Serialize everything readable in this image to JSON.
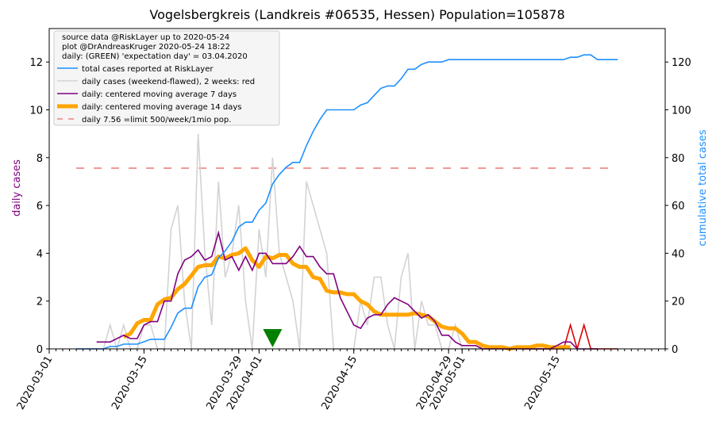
{
  "chart_data": {
    "type": "line",
    "title": "Vogelsbergkreis (Landkreis #06535, Hessen) Population=105878",
    "ylabel_left": "daily cases",
    "ylabel_right": "cumulative total cases",
    "x_axis": {
      "type": "date",
      "start": "2020-03-01",
      "end": "2020-05-31",
      "tick_labels": [
        "2020-03-01",
        "2020-03-15",
        "2020-03-29",
        "2020-04-01",
        "2020-04-15",
        "2020-04-29",
        "2020-05-01",
        "2020-05-15"
      ]
    },
    "y_left": {
      "ylim": [
        0,
        13.4
      ],
      "ticks": [
        0,
        2,
        4,
        6,
        8,
        10,
        12
      ]
    },
    "y_right": {
      "ylim": [
        0,
        134
      ],
      "ticks": [
        0,
        20,
        40,
        60,
        80,
        100,
        120
      ]
    },
    "legend": {
      "placement": "top-left",
      "header": [
        "source data @RiskLayer up to 2020-05-24",
        "plot @DrAndreasKruger 2020-05-24 18:22",
        "daily: (GREEN) 'expectation day' = 03.04.2020"
      ],
      "entries": [
        {
          "label": "total cases reported at RiskLayer",
          "color": "#1E90FF",
          "style": "line"
        },
        {
          "label": "daily cases (weekend-flawed), 2 weeks: red",
          "color": "#D3D3D3",
          "style": "line"
        },
        {
          "label": "daily: centered moving average 7 days",
          "color": "#800080",
          "style": "line"
        },
        {
          "label": "daily: centered moving average 14 days",
          "color": "#FFA500",
          "style": "thick"
        },
        {
          "label": "daily 7.56 =limit 500/week/1mio pop.",
          "color": "#F08080",
          "style": "dashed"
        }
      ]
    },
    "expectation_day": {
      "date": "2020-04-03",
      "color": "#008000"
    },
    "limit_line": {
      "value": 7.56,
      "color": "#F08080",
      "start": "2020-03-05",
      "end": "2020-05-24"
    },
    "series": [
      {
        "name": "total cases reported at RiskLayer",
        "axis": "right",
        "color": "#1E90FF",
        "x": [
          "2020-03-05",
          "2020-03-06",
          "2020-03-07",
          "2020-03-08",
          "2020-03-09",
          "2020-03-10",
          "2020-03-11",
          "2020-03-12",
          "2020-03-13",
          "2020-03-14",
          "2020-03-15",
          "2020-03-16",
          "2020-03-17",
          "2020-03-18",
          "2020-03-19",
          "2020-03-20",
          "2020-03-21",
          "2020-03-22",
          "2020-03-23",
          "2020-03-24",
          "2020-03-25",
          "2020-03-26",
          "2020-03-27",
          "2020-03-28",
          "2020-03-29",
          "2020-03-30",
          "2020-03-31",
          "2020-04-01",
          "2020-04-02",
          "2020-04-03",
          "2020-04-04",
          "2020-04-05",
          "2020-04-06",
          "2020-04-07",
          "2020-04-08",
          "2020-04-09",
          "2020-04-10",
          "2020-04-11",
          "2020-04-12",
          "2020-04-13",
          "2020-04-14",
          "2020-04-15",
          "2020-04-16",
          "2020-04-17",
          "2020-04-18",
          "2020-04-19",
          "2020-04-20",
          "2020-04-21",
          "2020-04-22",
          "2020-04-23",
          "2020-04-24",
          "2020-04-25",
          "2020-04-26",
          "2020-04-27",
          "2020-04-28",
          "2020-04-29",
          "2020-04-30",
          "2020-05-01",
          "2020-05-02",
          "2020-05-03",
          "2020-05-04",
          "2020-05-05",
          "2020-05-06",
          "2020-05-07",
          "2020-05-08",
          "2020-05-09",
          "2020-05-10",
          "2020-05-11",
          "2020-05-12",
          "2020-05-13",
          "2020-05-14",
          "2020-05-15",
          "2020-05-16",
          "2020-05-17",
          "2020-05-18",
          "2020-05-19",
          "2020-05-20",
          "2020-05-21",
          "2020-05-22",
          "2020-05-23",
          "2020-05-24"
        ],
        "values": [
          0,
          0,
          0,
          0,
          0,
          1,
          1,
          2,
          2,
          2,
          3,
          4,
          4,
          4,
          9,
          15,
          17,
          17,
          26,
          30,
          31,
          38,
          41,
          45,
          51,
          53,
          53,
          58,
          61,
          69,
          73,
          76,
          78,
          78,
          85,
          91,
          96,
          100,
          100,
          100,
          100,
          100,
          102,
          103,
          106,
          109,
          110,
          110,
          113,
          117,
          117,
          119,
          120,
          120,
          120,
          121,
          121,
          121,
          121,
          121,
          121,
          121,
          121,
          121,
          121,
          121,
          121,
          121,
          121,
          121,
          121,
          121,
          121,
          122,
          122,
          123,
          123,
          121,
          121,
          121,
          121
        ]
      },
      {
        "name": "daily cases (weekend-flawed), 2 weeks: red",
        "axis": "left",
        "color": "#D3D3D3",
        "recent_color": "#DD0000",
        "recent_from": "2020-05-10",
        "x": [
          "2020-03-05",
          "2020-03-06",
          "2020-03-07",
          "2020-03-08",
          "2020-03-09",
          "2020-03-10",
          "2020-03-11",
          "2020-03-12",
          "2020-03-13",
          "2020-03-14",
          "2020-03-15",
          "2020-03-16",
          "2020-03-17",
          "2020-03-18",
          "2020-03-19",
          "2020-03-20",
          "2020-03-21",
          "2020-03-22",
          "2020-03-23",
          "2020-03-24",
          "2020-03-25",
          "2020-03-26",
          "2020-03-27",
          "2020-03-28",
          "2020-03-29",
          "2020-03-30",
          "2020-03-31",
          "2020-04-01",
          "2020-04-02",
          "2020-04-03",
          "2020-04-04",
          "2020-04-05",
          "2020-04-06",
          "2020-04-07",
          "2020-04-08",
          "2020-04-09",
          "2020-04-10",
          "2020-04-11",
          "2020-04-12",
          "2020-04-13",
          "2020-04-14",
          "2020-04-15",
          "2020-04-16",
          "2020-04-17",
          "2020-04-18",
          "2020-04-19",
          "2020-04-20",
          "2020-04-21",
          "2020-04-22",
          "2020-04-23",
          "2020-04-24",
          "2020-04-25",
          "2020-04-26",
          "2020-04-27",
          "2020-04-28",
          "2020-04-29",
          "2020-04-30",
          "2020-05-01",
          "2020-05-02",
          "2020-05-03",
          "2020-05-04",
          "2020-05-05",
          "2020-05-06",
          "2020-05-07",
          "2020-05-08",
          "2020-05-09",
          "2020-05-10",
          "2020-05-11",
          "2020-05-12",
          "2020-05-13",
          "2020-05-14",
          "2020-05-15",
          "2020-05-16",
          "2020-05-17",
          "2020-05-18",
          "2020-05-19",
          "2020-05-20",
          "2020-05-21",
          "2020-05-22",
          "2020-05-23",
          "2020-05-24"
        ],
        "values": [
          0,
          0,
          0,
          0,
          0,
          1,
          0,
          1,
          0,
          0,
          1,
          1,
          0,
          0,
          5,
          6,
          2,
          0,
          9,
          4,
          1,
          7,
          3,
          4,
          6,
          2,
          0,
          5,
          3,
          8,
          4,
          3,
          2,
          0,
          7,
          6,
          5,
          4,
          0,
          0,
          0,
          0,
          2,
          1,
          3,
          3,
          1,
          0,
          3,
          4,
          0,
          2,
          1,
          1,
          0,
          0,
          1,
          0,
          0,
          0,
          0,
          0,
          0,
          0,
          0,
          0,
          0,
          0,
          0,
          0,
          0,
          0,
          0,
          1,
          0,
          1,
          0,
          0,
          0,
          0,
          0
        ]
      },
      {
        "name": "daily: centered moving average 7 days",
        "axis": "left",
        "color": "#800080",
        "x": [
          "2020-03-08",
          "2020-03-09",
          "2020-03-10",
          "2020-03-11",
          "2020-03-12",
          "2020-03-13",
          "2020-03-14",
          "2020-03-15",
          "2020-03-16",
          "2020-03-17",
          "2020-03-18",
          "2020-03-19",
          "2020-03-20",
          "2020-03-21",
          "2020-03-22",
          "2020-03-23",
          "2020-03-24",
          "2020-03-25",
          "2020-03-26",
          "2020-03-27",
          "2020-03-28",
          "2020-03-29",
          "2020-03-30",
          "2020-03-31",
          "2020-04-01",
          "2020-04-02",
          "2020-04-03",
          "2020-04-04",
          "2020-04-05",
          "2020-04-06",
          "2020-04-07",
          "2020-04-08",
          "2020-04-09",
          "2020-04-10",
          "2020-04-11",
          "2020-04-12",
          "2020-04-13",
          "2020-04-14",
          "2020-04-15",
          "2020-04-16",
          "2020-04-17",
          "2020-04-18",
          "2020-04-19",
          "2020-04-20",
          "2020-04-21",
          "2020-04-22",
          "2020-04-23",
          "2020-04-24",
          "2020-04-25",
          "2020-04-26",
          "2020-04-27",
          "2020-04-28",
          "2020-04-29",
          "2020-04-30",
          "2020-05-01",
          "2020-05-02",
          "2020-05-03",
          "2020-05-04",
          "2020-05-05",
          "2020-05-06",
          "2020-05-07",
          "2020-05-08",
          "2020-05-09",
          "2020-05-10",
          "2020-05-11",
          "2020-05-12",
          "2020-05-13",
          "2020-05-14",
          "2020-05-15",
          "2020-05-16",
          "2020-05-17",
          "2020-05-18",
          "2020-05-19",
          "2020-05-20",
          "2020-05-21"
        ],
        "values": [
          0.29,
          0.29,
          0.29,
          0.43,
          0.57,
          0.43,
          0.43,
          1.0,
          1.14,
          1.14,
          2.0,
          2.0,
          3.14,
          3.71,
          3.86,
          4.14,
          3.71,
          3.86,
          4.86,
          3.71,
          3.86,
          3.29,
          3.86,
          3.29,
          4.0,
          4.0,
          3.57,
          3.57,
          3.57,
          3.86,
          4.29,
          3.86,
          3.86,
          3.43,
          3.14,
          3.14,
          2.14,
          1.57,
          1.0,
          0.86,
          1.29,
          1.43,
          1.43,
          1.86,
          2.14,
          2.0,
          1.86,
          1.57,
          1.29,
          1.43,
          1.14,
          0.57,
          0.57,
          0.29,
          0.14,
          0.14,
          0.14,
          0,
          0,
          0,
          0,
          0,
          0,
          0,
          0,
          0,
          0,
          0,
          0.14,
          0.29,
          0.29,
          0,
          0,
          0,
          0
        ]
      },
      {
        "name": "daily: centered moving average 14 days",
        "axis": "left",
        "color": "#FFA500",
        "x": [
          "2020-03-12",
          "2020-03-13",
          "2020-03-14",
          "2020-03-15",
          "2020-03-16",
          "2020-03-17",
          "2020-03-18",
          "2020-03-19",
          "2020-03-20",
          "2020-03-21",
          "2020-03-22",
          "2020-03-23",
          "2020-03-24",
          "2020-03-25",
          "2020-03-26",
          "2020-03-27",
          "2020-03-28",
          "2020-03-29",
          "2020-03-30",
          "2020-03-31",
          "2020-04-01",
          "2020-04-02",
          "2020-04-03",
          "2020-04-04",
          "2020-04-05",
          "2020-04-06",
          "2020-04-07",
          "2020-04-08",
          "2020-04-09",
          "2020-04-10",
          "2020-04-11",
          "2020-04-12",
          "2020-04-13",
          "2020-04-14",
          "2020-04-15",
          "2020-04-16",
          "2020-04-17",
          "2020-04-18",
          "2020-04-19",
          "2020-04-20",
          "2020-04-21",
          "2020-04-22",
          "2020-04-23",
          "2020-04-24",
          "2020-04-25",
          "2020-04-26",
          "2020-04-27",
          "2020-04-28",
          "2020-04-29",
          "2020-04-30",
          "2020-05-01",
          "2020-05-02",
          "2020-05-03",
          "2020-05-04",
          "2020-05-05",
          "2020-05-06",
          "2020-05-07",
          "2020-05-08",
          "2020-05-09",
          "2020-05-10",
          "2020-05-11",
          "2020-05-12",
          "2020-05-13",
          "2020-05-14",
          "2020-05-15",
          "2020-05-16",
          "2020-05-17"
        ],
        "values": [
          0.5,
          0.64,
          1.07,
          1.21,
          1.21,
          1.86,
          2.07,
          2.14,
          2.5,
          2.71,
          3.07,
          3.43,
          3.5,
          3.5,
          3.86,
          3.79,
          3.93,
          4.0,
          4.21,
          3.71,
          3.43,
          3.86,
          3.79,
          3.93,
          3.93,
          3.57,
          3.43,
          3.43,
          3.0,
          2.93,
          2.43,
          2.36,
          2.36,
          2.29,
          2.29,
          2.0,
          1.86,
          1.57,
          1.43,
          1.43,
          1.43,
          1.43,
          1.43,
          1.5,
          1.43,
          1.36,
          1.14,
          0.93,
          0.86,
          0.86,
          0.64,
          0.29,
          0.29,
          0.14,
          0.07,
          0.07,
          0.07,
          0,
          0.07,
          0.07,
          0.07,
          0.14,
          0.14,
          0.07,
          0.07,
          0.07,
          0.07
        ]
      }
    ]
  }
}
